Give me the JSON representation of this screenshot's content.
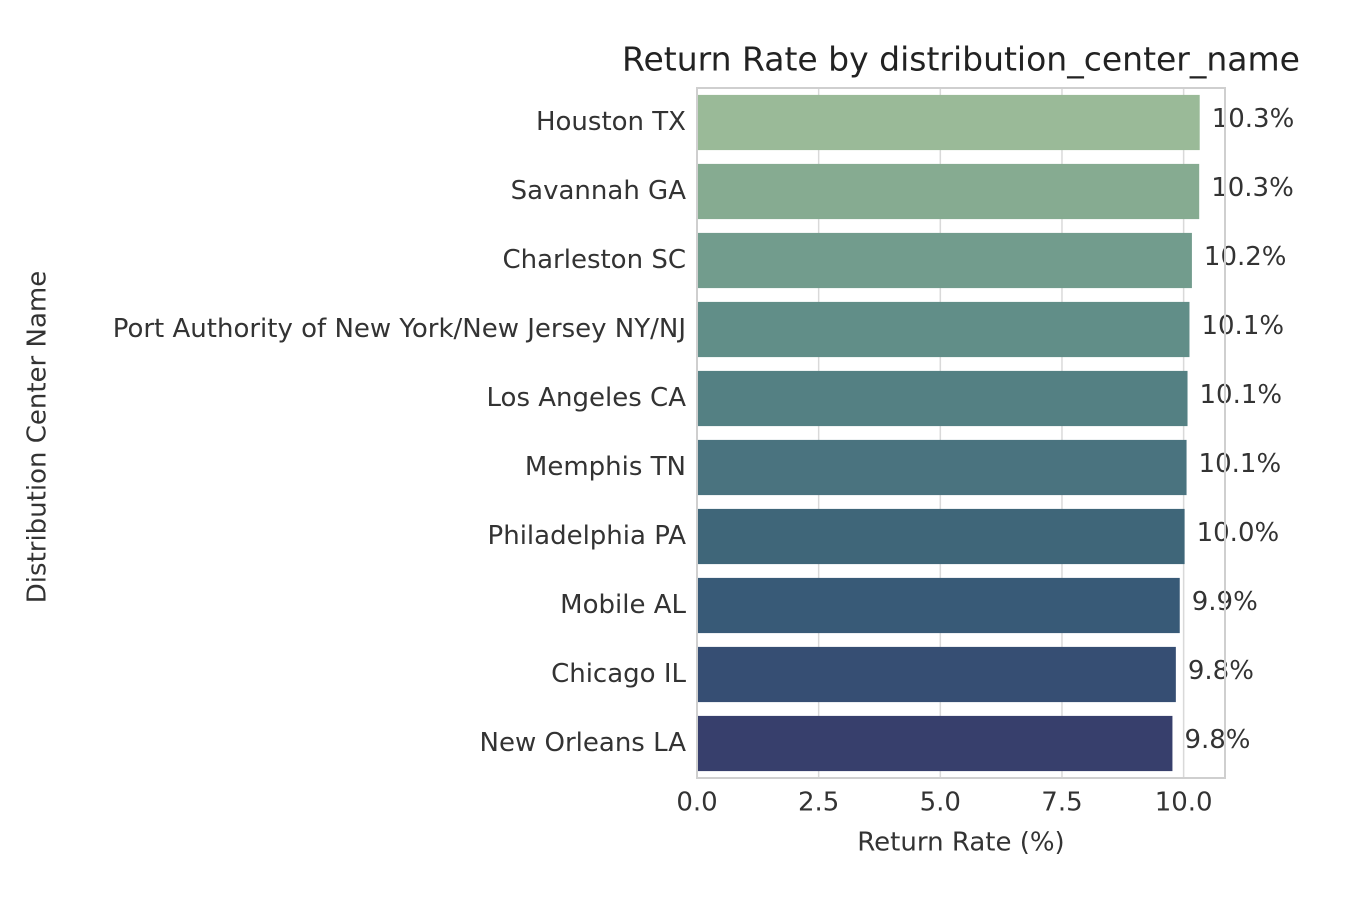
{
  "chart_data": {
    "type": "hbar",
    "title": "Return Rate by distribution_center_name",
    "xlabel": "Return Rate (%)",
    "ylabel": "Distribution Center Name",
    "categories": [
      "Houston TX",
      "Savannah GA",
      "Charleston SC",
      "Port Authority of New York/New Jersey NY/NJ",
      "Los Angeles CA",
      "Memphis TN",
      "Philadelphia PA",
      "Mobile AL",
      "Chicago IL",
      "New Orleans LA"
    ],
    "values": [
      10.33,
      10.32,
      10.17,
      10.12,
      10.08,
      10.06,
      10.02,
      9.92,
      9.84,
      9.77
    ],
    "value_labels": [
      "10.3%",
      "10.3%",
      "10.2%",
      "10.1%",
      "10.1%",
      "10.1%",
      "10.0%",
      "9.9%",
      "9.8%",
      "9.8%"
    ],
    "colors": [
      "#9aba98",
      "#86ab91",
      "#729c8d",
      "#618e88",
      "#548083",
      "#4a737f",
      "#3f6679",
      "#385a77",
      "#364e73",
      "#373f6c"
    ],
    "xlim": [
      0,
      10.85
    ],
    "xticks": [
      {
        "value": 0,
        "label": "0.0"
      },
      2.5,
      {
        "value": 5,
        "label": "5.0"
      },
      7.5,
      {
        "value": 10,
        "label": "10.0"
      }
    ],
    "grid": true
  }
}
